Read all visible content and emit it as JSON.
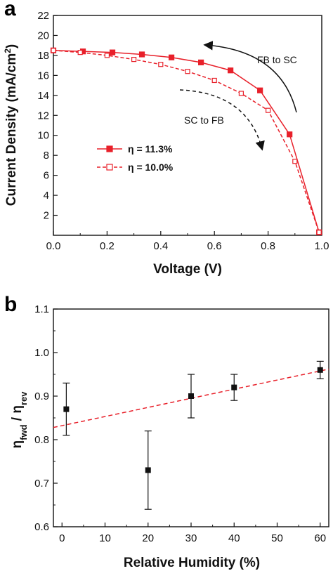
{
  "chart_data": [
    {
      "panel": "a",
      "type": "line",
      "title": "",
      "xlabel": "Voltage (V)",
      "ylabel": "Current Density (mA/cm²)",
      "xlim": [
        0.0,
        1.0
      ],
      "ylim": [
        0,
        22
      ],
      "xticks": [
        "0.0",
        "0.2",
        "0.4",
        "0.6",
        "0.8",
        "1.0"
      ],
      "yticks": [
        "2",
        "4",
        "6",
        "8",
        "10",
        "12",
        "14",
        "16",
        "18",
        "20",
        "22"
      ],
      "grid": false,
      "legend_position": "center-left",
      "series": [
        {
          "name": "η = 11.3%",
          "color": "#e8202a",
          "line_style": "solid",
          "marker": "filled-square",
          "x": [
            0.0,
            0.11,
            0.22,
            0.33,
            0.44,
            0.55,
            0.66,
            0.77,
            0.88,
            0.99
          ],
          "y": [
            18.5,
            18.4,
            18.3,
            18.1,
            17.8,
            17.3,
            16.5,
            14.5,
            10.1,
            0.3
          ]
        },
        {
          "name": "η = 10.0%",
          "color": "#e8202a",
          "line_style": "dashed",
          "marker": "open-square",
          "x": [
            0.0,
            0.1,
            0.2,
            0.3,
            0.4,
            0.5,
            0.6,
            0.7,
            0.8,
            0.9,
            0.99
          ],
          "y": [
            18.5,
            18.3,
            18.0,
            17.6,
            17.1,
            16.4,
            15.5,
            14.2,
            12.5,
            7.4,
            0.3
          ]
        }
      ],
      "annotations": [
        {
          "text": "FB to SC",
          "arrow_style": "solid"
        },
        {
          "text": "SC to FB",
          "arrow_style": "dashed"
        }
      ]
    },
    {
      "panel": "b",
      "type": "scatter",
      "title": "",
      "xlabel": "Relative Humidity (%)",
      "ylabel": "η_fwd / η_rev",
      "ylabel_parts": {
        "main": "η",
        "sub1": "fwd",
        "sep": " / ",
        "sub2": "rev"
      },
      "xlim": [
        -2,
        62
      ],
      "ylim": [
        0.6,
        1.1
      ],
      "xticks": [
        "0",
        "10",
        "20",
        "30",
        "40",
        "50",
        "60"
      ],
      "yticks": [
        "0.6",
        "0.7",
        "0.8",
        "0.9",
        "1.0",
        "1.1"
      ],
      "grid": false,
      "points": {
        "color": "#111111",
        "marker": "filled-square",
        "x": [
          1,
          20,
          30,
          40,
          60
        ],
        "y": [
          0.87,
          0.73,
          0.9,
          0.92,
          0.96
        ],
        "error": [
          0.06,
          0.09,
          0.05,
          0.03,
          0.02
        ]
      },
      "fit_line": {
        "color": "#e8202a",
        "line_style": "dashed",
        "x": [
          -2,
          62
        ],
        "y": [
          0.828,
          0.962
        ]
      }
    }
  ]
}
